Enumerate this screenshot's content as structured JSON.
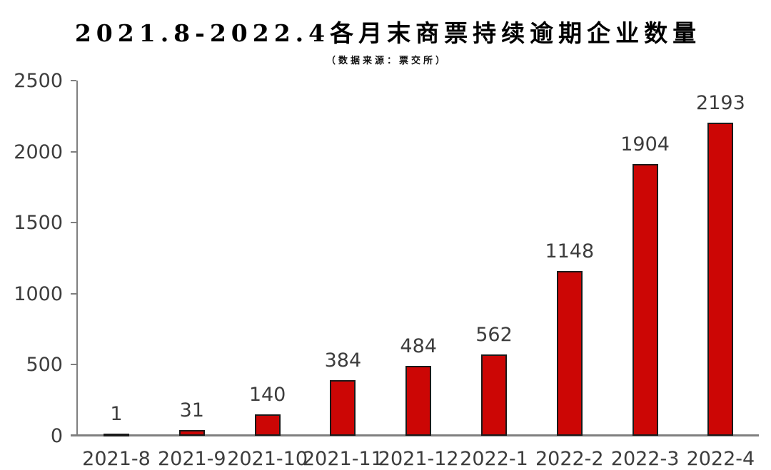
{
  "page": {
    "title": "2021.8-2022.4各月末商票持续逾期企业数量",
    "subtitle": "（数据来源：票交所）"
  },
  "colors": {
    "bar_fill": "#cc0605",
    "bar_border": "#1a1a1a",
    "axis": "#7f7f7f",
    "tick_label": "#3d3d3d",
    "value_label": "#3d3d3d",
    "title_text": "#000000",
    "subtitle_text": "#111111",
    "background": "#ffffff"
  },
  "chart_data": {
    "type": "bar",
    "title": "2021.8-2022.4各月末商票持续逾期企业数量",
    "subtitle": "（数据来源：票交所）",
    "categories": [
      "2021-8",
      "2021-9",
      "2021-10",
      "2021-11",
      "2021-12",
      "2022-1",
      "2022-2",
      "2022-3",
      "2022-4"
    ],
    "values": [
      1,
      31,
      140,
      384,
      484,
      562,
      1148,
      1904,
      2193
    ],
    "bar_value_labels": [
      "1",
      "31",
      "140",
      "384",
      "484",
      "562",
      "1148",
      "1904",
      "2193"
    ],
    "xlabel": "",
    "ylabel": "",
    "ylim": [
      0,
      2500
    ],
    "yticks": [
      0,
      500,
      1000,
      1500,
      2000,
      2500
    ],
    "grid": false,
    "legend": "none",
    "bar_labels_shown": true
  }
}
